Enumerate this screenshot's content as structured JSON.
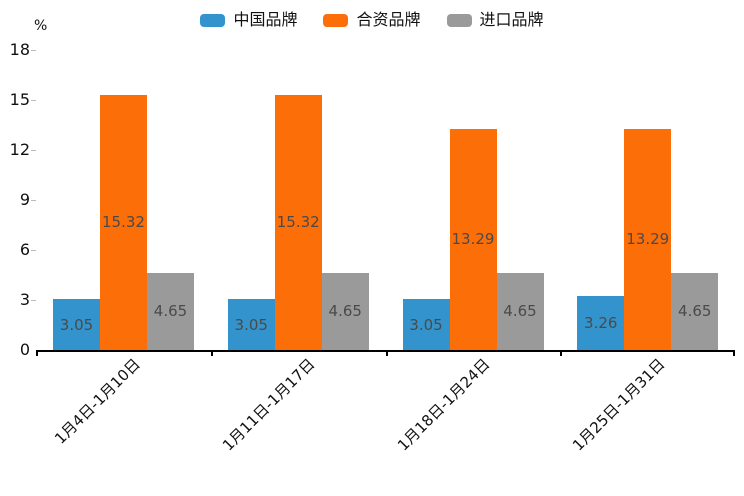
{
  "chart_data": {
    "type": "bar",
    "title": "",
    "ylabel": "%",
    "xlabel": "",
    "ylim": [
      0,
      18
    ],
    "yticks": [
      0,
      3,
      6,
      9,
      12,
      15,
      18
    ],
    "grid": false,
    "legend_position": "top-center",
    "value_labels": "inside-center",
    "categories": [
      "1月4日-1月10日",
      "1月11日-1月17日",
      "1月18日-1月24日",
      "1月25日-1月31日"
    ],
    "series": [
      {
        "name": "中国品牌",
        "color": "#3394cd",
        "values": [
          3.05,
          3.05,
          3.05,
          3.26
        ]
      },
      {
        "name": "合资品牌",
        "color": "#fc6e08",
        "values": [
          15.32,
          15.32,
          13.29,
          13.29
        ]
      },
      {
        "name": "进口品牌",
        "color": "#9a9a9a",
        "values": [
          4.65,
          4.65,
          4.65,
          4.65
        ]
      }
    ],
    "axis_color": "#000000",
    "label_text_color": "#4a4a4a"
  }
}
